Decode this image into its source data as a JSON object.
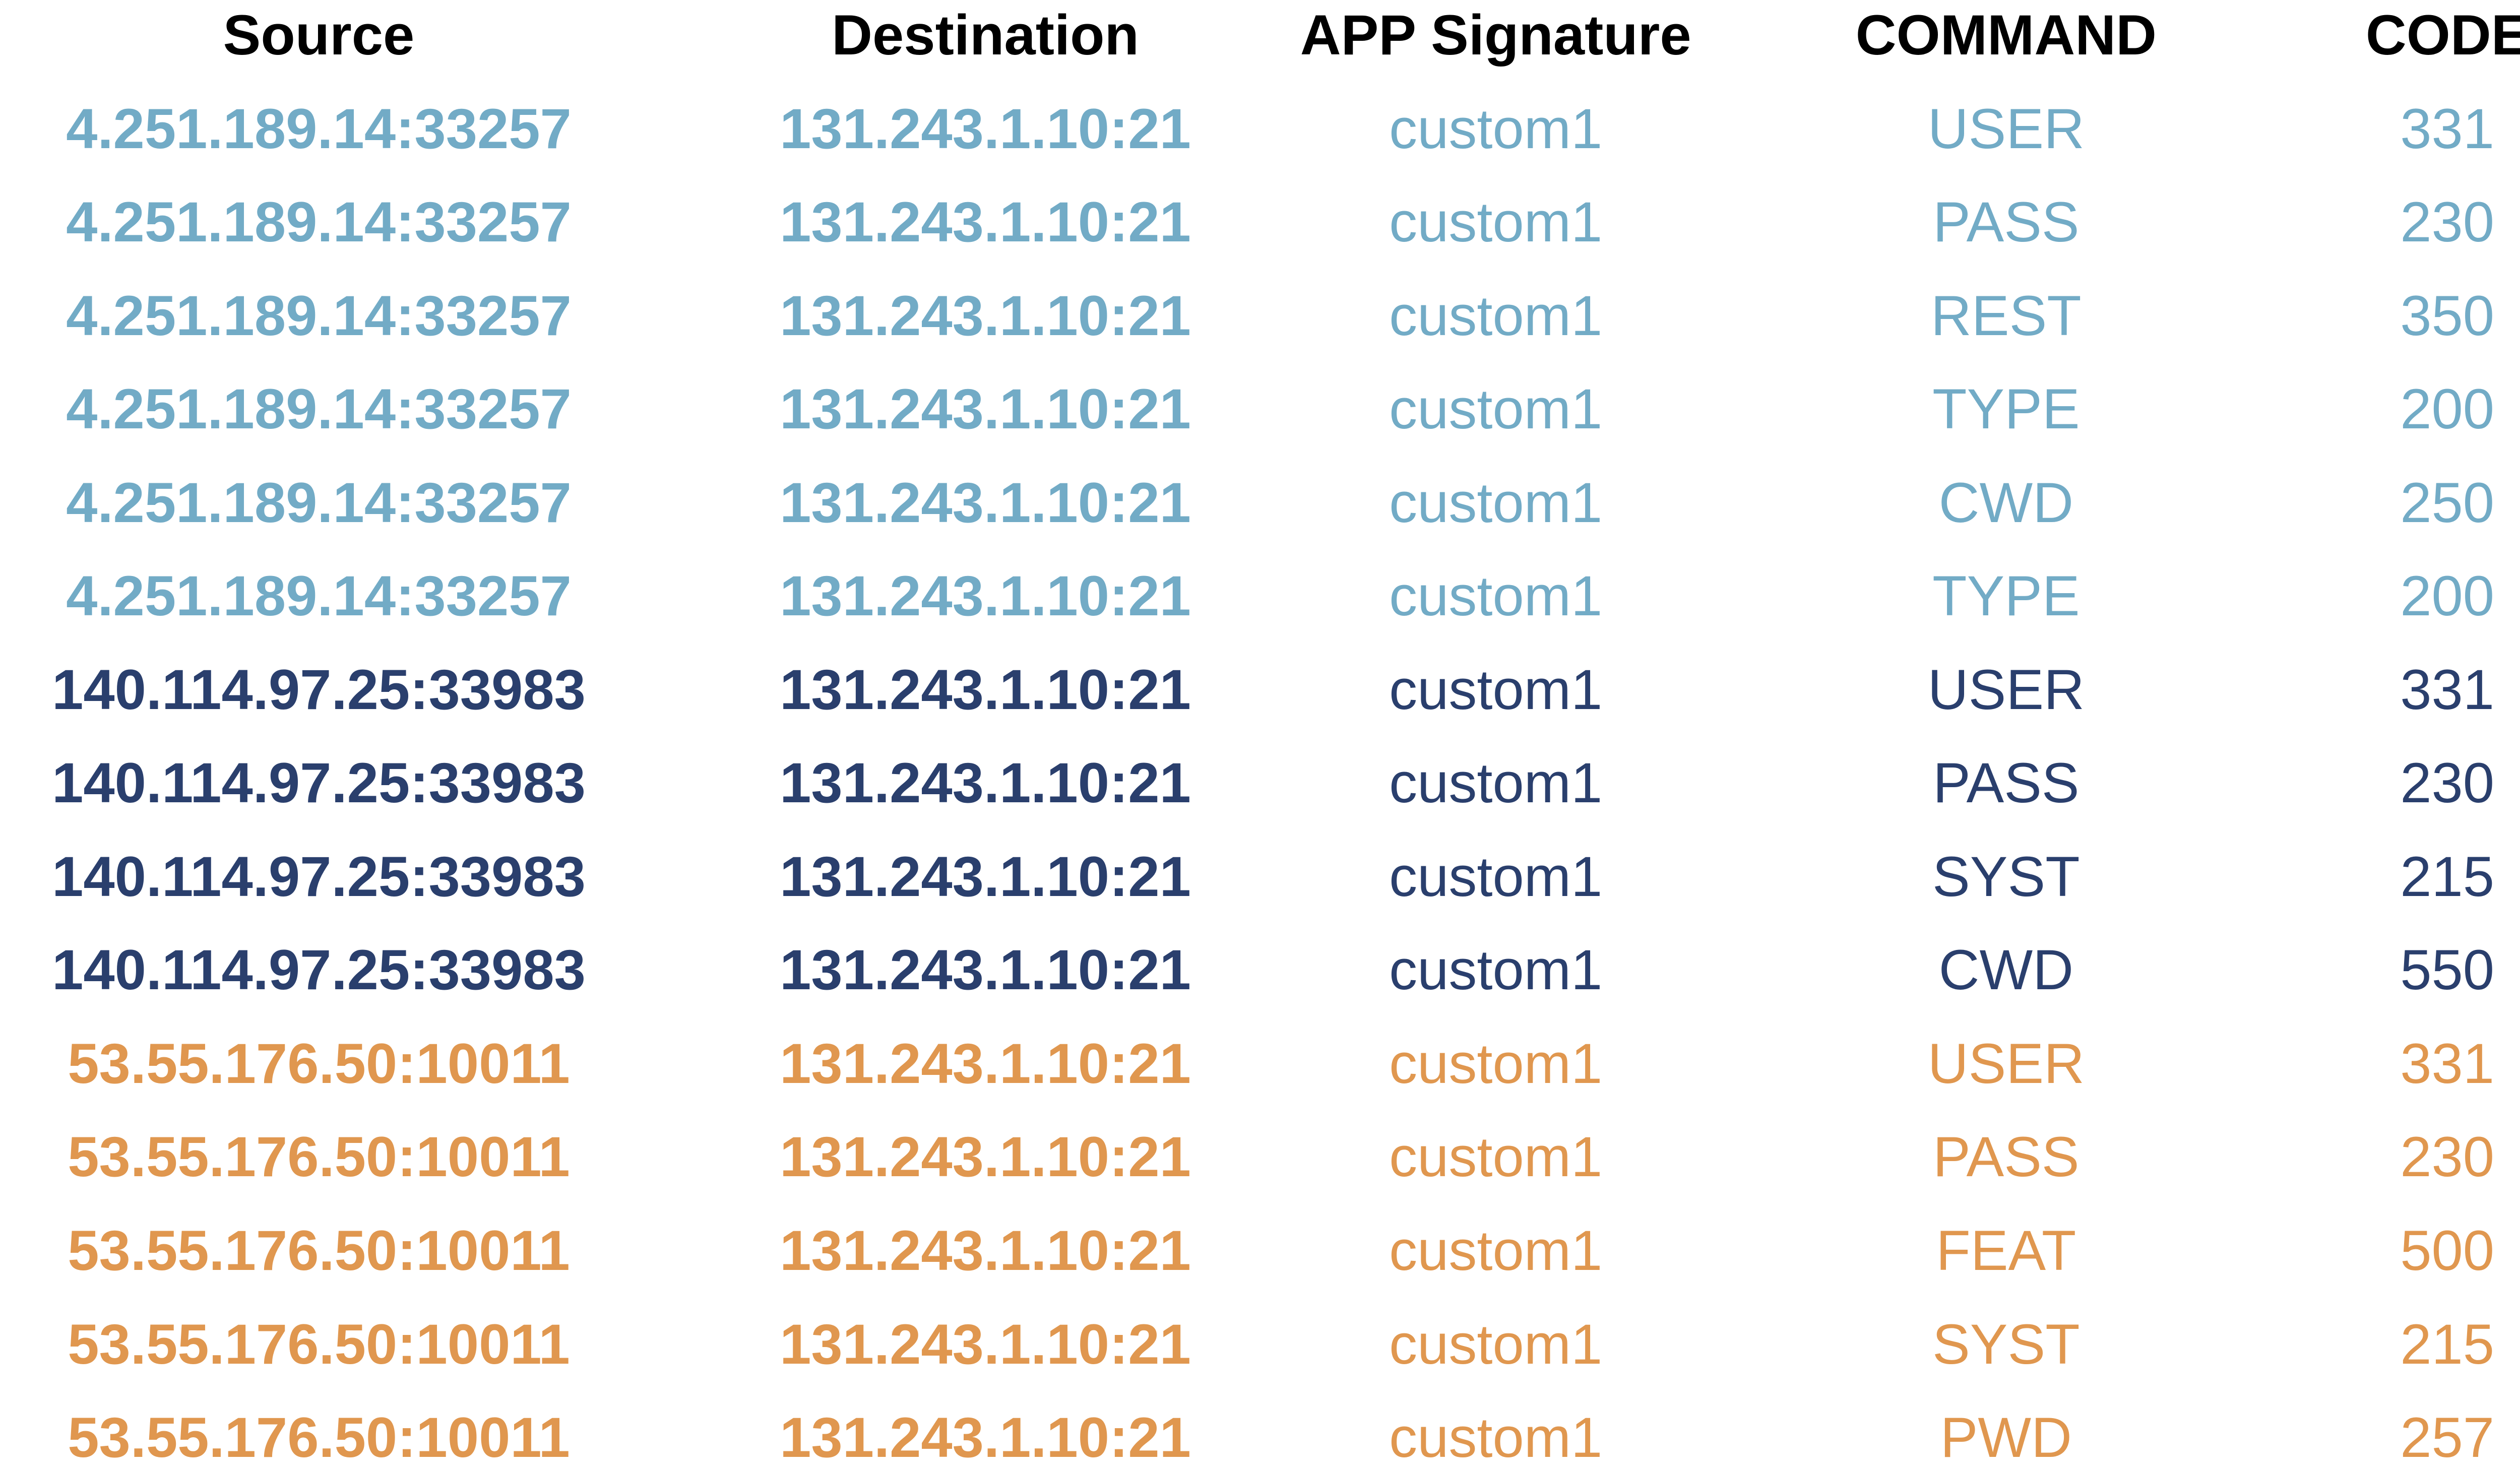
{
  "headers": [
    "Source",
    "Destination",
    "APP Signature",
    "COMMAND",
    "CODE"
  ],
  "groups": [
    {
      "name": "light-blue",
      "color": "#72abc6"
    },
    {
      "name": "navy",
      "color": "#2a3f6d"
    },
    {
      "name": "orange",
      "color": "#e0974f"
    }
  ],
  "rows": [
    {
      "source": "4.251.189.14:33257",
      "destination": "131.243.1.10:21",
      "app": "custom1",
      "command": "USER",
      "code": "331",
      "group": 0
    },
    {
      "source": "4.251.189.14:33257",
      "destination": "131.243.1.10:21",
      "app": "custom1",
      "command": "PASS",
      "code": "230",
      "group": 0
    },
    {
      "source": "4.251.189.14:33257",
      "destination": "131.243.1.10:21",
      "app": "custom1",
      "command": "REST",
      "code": "350",
      "group": 0
    },
    {
      "source": "4.251.189.14:33257",
      "destination": "131.243.1.10:21",
      "app": "custom1",
      "command": "TYPE",
      "code": "200",
      "group": 0
    },
    {
      "source": "4.251.189.14:33257",
      "destination": "131.243.1.10:21",
      "app": "custom1",
      "command": "CWD",
      "code": "250",
      "group": 0
    },
    {
      "source": "4.251.189.14:33257",
      "destination": "131.243.1.10:21",
      "app": "custom1",
      "command": "TYPE",
      "code": "200",
      "group": 0
    },
    {
      "source": "140.114.97.25:33983",
      "destination": "131.243.1.10:21",
      "app": "custom1",
      "command": "USER",
      "code": "331",
      "group": 1
    },
    {
      "source": "140.114.97.25:33983",
      "destination": "131.243.1.10:21",
      "app": "custom1",
      "command": "PASS",
      "code": "230",
      "group": 1
    },
    {
      "source": "140.114.97.25:33983",
      "destination": "131.243.1.10:21",
      "app": "custom1",
      "command": "SYST",
      "code": "215",
      "group": 1
    },
    {
      "source": "140.114.97.25:33983",
      "destination": "131.243.1.10:21",
      "app": "custom1",
      "command": "CWD",
      "code": "550",
      "group": 1
    },
    {
      "source": "53.55.176.50:10011",
      "destination": "131.243.1.10:21",
      "app": "custom1",
      "command": "USER",
      "code": "331",
      "group": 2
    },
    {
      "source": "53.55.176.50:10011",
      "destination": "131.243.1.10:21",
      "app": "custom1",
      "command": "PASS",
      "code": "230",
      "group": 2
    },
    {
      "source": "53.55.176.50:10011",
      "destination": "131.243.1.10:21",
      "app": "custom1",
      "command": "FEAT",
      "code": "500",
      "group": 2
    },
    {
      "source": "53.55.176.50:10011",
      "destination": "131.243.1.10:21",
      "app": "custom1",
      "command": "SYST",
      "code": "215",
      "group": 2
    },
    {
      "source": "53.55.176.50:10011",
      "destination": "131.243.1.10:21",
      "app": "custom1",
      "command": "PWD",
      "code": "257",
      "group": 2
    }
  ]
}
